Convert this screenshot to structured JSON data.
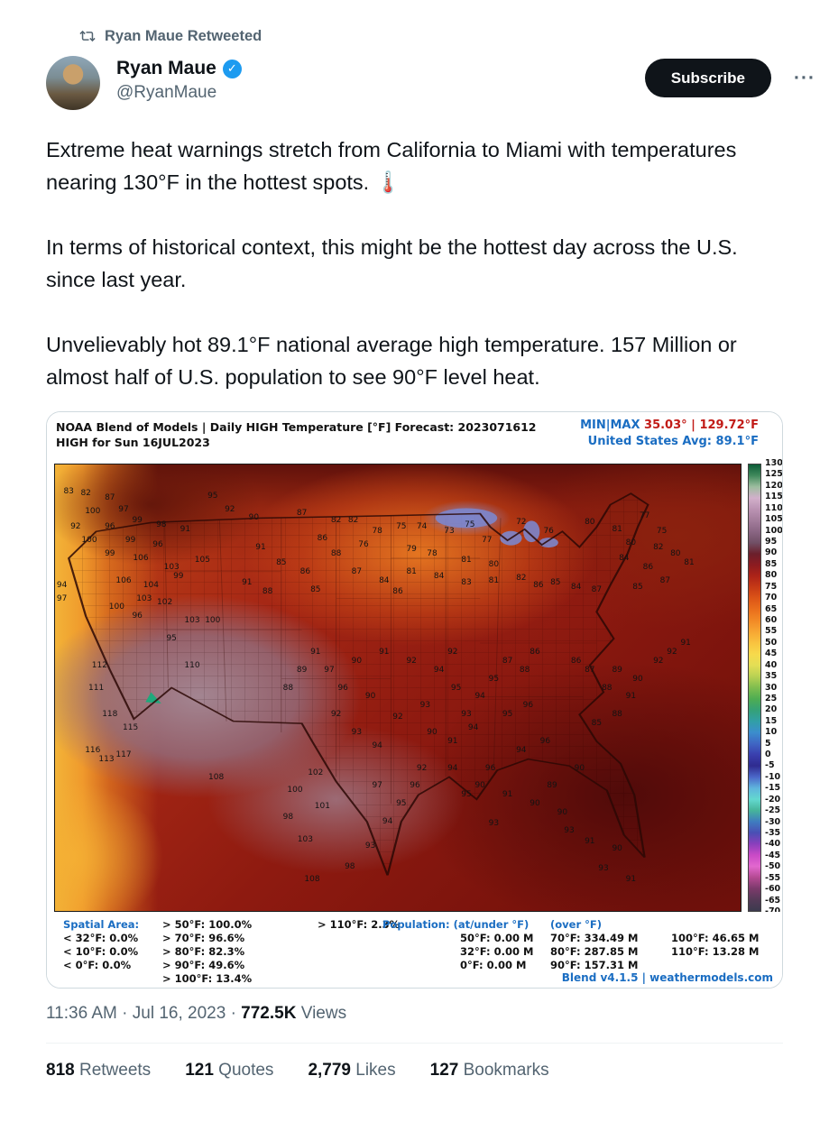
{
  "colors": {
    "accent_blue": "#1d9bf0",
    "text_primary": "#0f1419",
    "text_secondary": "#536471",
    "map_blue": "#1a6dc2",
    "map_red": "#c11b17",
    "subscribe_bg": "#0f1419"
  },
  "retweet_banner": {
    "label": "Ryan Maue Retweeted"
  },
  "user": {
    "name": "Ryan Maue",
    "handle": "@RyanMaue",
    "verified_check": "✓"
  },
  "actions": {
    "subscribe_label": "Subscribe",
    "more_label": "···"
  },
  "tweet_text": {
    "p1": "Extreme heat warnings stretch from California to Miami with temperatures nearing 130°F in the hottest spots. 🌡️",
    "p2": "In terms of historical context, this might be the hottest day across the U.S. since last year.",
    "p3": "Unvelievably hot 89.1°F national average high temperature.  157 Million or almost half of U.S. population to see 90°F level heat."
  },
  "map": {
    "title_line1": "NOAA Blend of Models | Daily HIGH Temperature [°F] Forecast: 2023071612",
    "title_line2": "HIGH for Sun 16JUL2023",
    "minmax_label": "MIN|MAX",
    "minmax_value": " 35.03°  |  129.72°F",
    "avg_label": "United States Avg: 89.1°F",
    "colorbar_ticks": [
      130,
      125,
      120,
      115,
      110,
      105,
      100,
      95,
      90,
      85,
      80,
      75,
      70,
      65,
      60,
      55,
      50,
      45,
      40,
      35,
      30,
      25,
      20,
      15,
      10,
      5,
      0,
      -5,
      -10,
      -15,
      -20,
      -25,
      -30,
      -35,
      -40,
      -45,
      -50,
      -55,
      -60,
      -65,
      -70
    ],
    "colorbar_colors": [
      "#0b5c38",
      "#418a5c",
      "#9dbd9f",
      "#d2b0cb",
      "#bb93b3",
      "#a37d9c",
      "#8a6684",
      "#715066",
      "#6b1f2c",
      "#8c1b20",
      "#ad2318",
      "#c63a16",
      "#dc5517",
      "#ea6f1c",
      "#f28a26",
      "#f7a733",
      "#f9c33f",
      "#f7da4c",
      "#e3de55",
      "#b8d153",
      "#7fbd4f",
      "#4ead52",
      "#35a177",
      "#319fa6",
      "#3b8ecd",
      "#3f66c4",
      "#3a3fae",
      "#2f2b8f",
      "#4b67c9",
      "#5fb5dd",
      "#63d8cf",
      "#46b49a",
      "#3f7cc0",
      "#4a4fb4",
      "#8a3fbc",
      "#c94ac6",
      "#e268cf",
      "#b44a92",
      "#7c3a6b",
      "#553a58",
      "#3c3a4e"
    ],
    "temps": [
      [
        "83",
        2,
        6
      ],
      [
        "82",
        4.5,
        6.5
      ],
      [
        "87",
        8,
        7.5
      ],
      [
        "95",
        23,
        7
      ],
      [
        "92",
        25.5,
        10
      ],
      [
        "100",
        5.5,
        10.5
      ],
      [
        "97",
        10,
        10
      ],
      [
        "92",
        3,
        14
      ],
      [
        "96",
        8,
        14
      ],
      [
        "99",
        12,
        12.5
      ],
      [
        "98",
        15.5,
        13.5
      ],
      [
        "91",
        19,
        14.5
      ],
      [
        "90",
        29,
        12
      ],
      [
        "99",
        11,
        17
      ],
      [
        "96",
        15,
        18
      ],
      [
        "106",
        12.5,
        21
      ],
      [
        "100",
        5,
        17
      ],
      [
        "103",
        17,
        23
      ],
      [
        "105",
        21.5,
        21.5
      ],
      [
        "99",
        8,
        20
      ],
      [
        "87",
        36,
        11
      ],
      [
        "82",
        41,
        12.5
      ],
      [
        "82",
        43.5,
        12.5
      ],
      [
        "86",
        39,
        16.5
      ],
      [
        "88",
        41,
        20
      ],
      [
        "78",
        47,
        15
      ],
      [
        "75",
        50.5,
        14
      ],
      [
        "74",
        53.5,
        14
      ],
      [
        "76",
        45,
        18
      ],
      [
        "79",
        52,
        19
      ],
      [
        "78",
        55,
        20
      ],
      [
        "73",
        57.5,
        15
      ],
      [
        "75",
        60.5,
        13.5
      ],
      [
        "77",
        63,
        17
      ],
      [
        "81",
        60,
        21.5
      ],
      [
        "80",
        64,
        22.5
      ],
      [
        "72",
        68,
        13
      ],
      [
        "76",
        72,
        15
      ],
      [
        "80",
        78,
        13
      ],
      [
        "81",
        82,
        14.5
      ],
      [
        "77",
        86,
        11.5
      ],
      [
        "75",
        88.5,
        15
      ],
      [
        "80",
        84,
        17.5
      ],
      [
        "82",
        88,
        18.5
      ],
      [
        "84",
        83,
        21
      ],
      [
        "86",
        86.5,
        23
      ],
      [
        "80",
        90.5,
        20
      ],
      [
        "81",
        92.5,
        22
      ],
      [
        "87",
        89,
        26
      ],
      [
        "85",
        85,
        27.5
      ],
      [
        "91",
        30,
        18.5
      ],
      [
        "85",
        33,
        22
      ],
      [
        "86",
        36.5,
        24
      ],
      [
        "91",
        28,
        26.5
      ],
      [
        "88",
        31,
        28.5
      ],
      [
        "85",
        38,
        28
      ],
      [
        "81",
        52,
        24
      ],
      [
        "84",
        56,
        25
      ],
      [
        "83",
        60,
        26.5
      ],
      [
        "84",
        48,
        26
      ],
      [
        "86",
        50,
        28.5
      ],
      [
        "87",
        44,
        24
      ],
      [
        "81",
        64,
        26
      ],
      [
        "82",
        68,
        25.5
      ],
      [
        "86",
        70.5,
        27
      ],
      [
        "85",
        73,
        26.5
      ],
      [
        "84",
        76,
        27.5
      ],
      [
        "87",
        79,
        28
      ],
      [
        "106",
        10,
        26
      ],
      [
        "104",
        14,
        27
      ],
      [
        "99",
        18,
        25
      ],
      [
        "103",
        13,
        30
      ],
      [
        "102",
        16,
        31
      ],
      [
        "112",
        6.5,
        45
      ],
      [
        "111",
        6,
        50
      ],
      [
        "97",
        1,
        30
      ],
      [
        "94",
        1,
        27
      ],
      [
        "96",
        12,
        34
      ],
      [
        "100",
        9,
        32
      ],
      [
        "103",
        20,
        35
      ],
      [
        "100",
        23,
        35
      ],
      [
        "118",
        8,
        56
      ],
      [
        "116",
        5.5,
        64
      ],
      [
        "113",
        7.5,
        66
      ],
      [
        "117",
        10,
        65
      ],
      [
        "115",
        11,
        59
      ],
      [
        "95",
        17,
        39
      ],
      [
        "108",
        23.5,
        70
      ],
      [
        "110",
        20,
        45
      ],
      [
        "102",
        38,
        69
      ],
      [
        "100",
        35,
        73
      ],
      [
        "101",
        39,
        76.5
      ],
      [
        "98",
        34,
        79
      ],
      [
        "103",
        36.5,
        84
      ],
      [
        "108",
        37.5,
        93
      ],
      [
        "98",
        43,
        90
      ],
      [
        "93",
        46,
        85.5
      ],
      [
        "94",
        48.5,
        80
      ],
      [
        "95",
        50.5,
        76
      ],
      [
        "96",
        52.5,
        72
      ],
      [
        "97",
        47,
        72
      ],
      [
        "92",
        53.5,
        68
      ],
      [
        "90",
        62,
        72
      ],
      [
        "91",
        66,
        74
      ],
      [
        "93",
        64,
        80.5
      ],
      [
        "90",
        70,
        76
      ],
      [
        "89",
        72.5,
        72
      ],
      [
        "94",
        58,
        68
      ],
      [
        "95",
        60,
        74
      ],
      [
        "96",
        63.5,
        68
      ],
      [
        "93",
        75,
        82
      ],
      [
        "90",
        74,
        78
      ],
      [
        "91",
        78,
        84.5
      ],
      [
        "93",
        80,
        90.5
      ],
      [
        "94",
        68,
        64
      ],
      [
        "96",
        71.5,
        62
      ],
      [
        "90",
        76.5,
        68
      ],
      [
        "90",
        82,
        86
      ],
      [
        "91",
        84,
        93
      ],
      [
        "89",
        82,
        46
      ],
      [
        "90",
        85,
        48
      ],
      [
        "92",
        88,
        44
      ],
      [
        "91",
        84,
        52
      ],
      [
        "88",
        80.5,
        50
      ],
      [
        "87",
        78,
        46
      ],
      [
        "86",
        76,
        44
      ],
      [
        "88",
        82,
        56
      ],
      [
        "85",
        79,
        58
      ],
      [
        "92",
        90,
        42
      ],
      [
        "91",
        92,
        40
      ],
      [
        "90",
        44,
        44
      ],
      [
        "91",
        48,
        42
      ],
      [
        "92",
        52,
        44
      ],
      [
        "94",
        56,
        46
      ],
      [
        "95",
        58.5,
        50
      ],
      [
        "93",
        54,
        54
      ],
      [
        "92",
        50,
        56.5
      ],
      [
        "90",
        46,
        52
      ],
      [
        "96",
        42,
        50
      ],
      [
        "97",
        40,
        46
      ],
      [
        "91",
        38,
        42
      ],
      [
        "89",
        36,
        46
      ],
      [
        "88",
        34,
        50
      ],
      [
        "93",
        60,
        56
      ],
      [
        "94",
        62,
        52
      ],
      [
        "95",
        64,
        48
      ],
      [
        "92",
        58,
        42
      ],
      [
        "87",
        66,
        44
      ],
      [
        "88",
        68.5,
        46
      ],
      [
        "86",
        70,
        42
      ],
      [
        "92",
        41,
        56
      ],
      [
        "93",
        44,
        60
      ],
      [
        "94",
        47,
        63
      ],
      [
        "90",
        55,
        60
      ],
      [
        "91",
        58,
        62
      ],
      [
        "94",
        61,
        59
      ],
      [
        "95",
        66,
        56
      ],
      [
        "96",
        69,
        54
      ]
    ],
    "footer": {
      "spatial_label": "Spatial Area:",
      "spatial_under": [
        "< 32°F: 0.0%",
        "< 10°F: 0.0%",
        "< 0°F: 0.0%"
      ],
      "spatial_over": [
        "> 50°F: 100.0%",
        "> 70°F: 96.6%",
        "> 80°F: 82.3%",
        "> 90°F: 49.6%",
        "> 100°F: 13.4%"
      ],
      "spatial_110": "> 110°F: 2.3%",
      "pop_label": "Population: (at/under °F)",
      "pop_under": [
        "50°F: 0.00 M",
        "32°F: 0.00 M",
        "0°F: 0.00 M"
      ],
      "over_label": "(over °F)",
      "pop_over": [
        "70°F: 334.49 M",
        "80°F: 287.85 M",
        "90°F: 157.31 M"
      ],
      "pop_over2": [
        "100°F: 46.65 M",
        "110°F: 13.28 M"
      ],
      "credit": "Blend v4.1.5 | weathermodels.com"
    }
  },
  "meta": {
    "timestamp": "11:36 AM · Jul 16, 2023",
    "separator": "·",
    "views_count": "772.5K",
    "views_label": "Views"
  },
  "engagement": [
    {
      "count": "818",
      "label": "Retweets"
    },
    {
      "count": "121",
      "label": "Quotes"
    },
    {
      "count": "2,779",
      "label": "Likes"
    },
    {
      "count": "127",
      "label": "Bookmarks"
    }
  ]
}
